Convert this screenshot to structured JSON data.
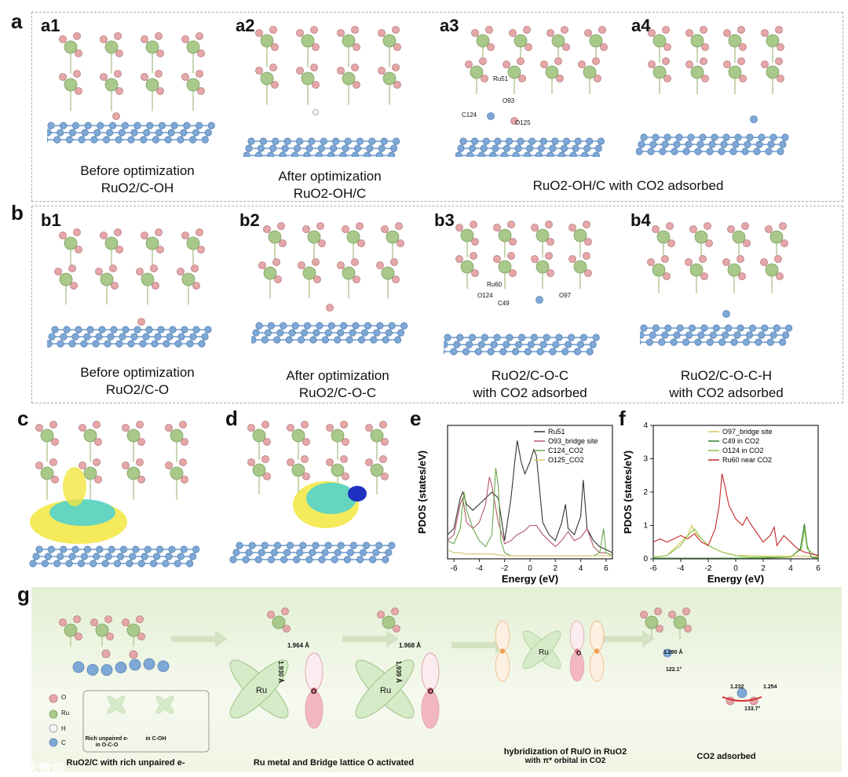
{
  "panels": {
    "a": "a",
    "b": "b",
    "c": "c",
    "d": "d",
    "e": "e",
    "f": "f",
    "g": "g",
    "a1": "a1",
    "a2": "a2",
    "a3": "a3",
    "a4": "a4",
    "b1": "b1",
    "b2": "b2",
    "b3": "b3",
    "b4": "b4"
  },
  "captions": {
    "a1_l1": "Before optimization",
    "a1_l2": "RuO2/C-OH",
    "a2_l1": "After optimization",
    "a2_l2": "RuO2-OH/C",
    "a34": "RuO2-OH/C with CO2 adsorbed",
    "b1_l1": "Before optimization",
    "b1_l2": "RuO2/C-O",
    "b2_l1": "After optimization",
    "b2_l2": "RuO2/C-O-C",
    "b3_l1": "RuO2/C-O-C",
    "b3_l2": "with CO2 adsorbed",
    "b4_l1": "RuO2/C-O-C-H",
    "b4_l2": "with CO2 adsorbed"
  },
  "atom_labels": {
    "a3": [
      "Ru51",
      "O93",
      "C124",
      "O125"
    ],
    "b3": [
      "Ru60",
      "O124",
      "C49",
      "O97"
    ]
  },
  "chart_data": [
    {
      "type": "line",
      "panel": "e",
      "xlabel": "Energy (eV)",
      "ylabel": "PDOS (states/eV)",
      "xlim": [
        -6.5,
        6.5
      ],
      "ylim": [
        0,
        2.2
      ],
      "xticks": [
        "-6",
        "-4",
        "-2",
        "0",
        "2",
        "4",
        "6"
      ],
      "series": [
        {
          "name": "Ru51",
          "color": "#333333",
          "x": [
            -6.5,
            -6,
            -5.5,
            -5.3,
            -5,
            -4.5,
            -4,
            -3.5,
            -3,
            -2.5,
            -2,
            -1.5,
            -1.2,
            -1,
            -0.7,
            -0.4,
            0,
            0.3,
            0.5,
            1,
            1.5,
            2,
            2.5,
            2.8,
            3,
            3.5,
            4,
            4.2,
            4.5,
            5,
            5.5,
            6,
            6.5
          ],
          "y": [
            0.4,
            0.5,
            1.0,
            1.1,
            0.9,
            0.8,
            0.9,
            1.0,
            1.1,
            1.0,
            0.3,
            1.0,
            1.6,
            1.95,
            1.6,
            1.4,
            1.6,
            1.8,
            1.7,
            0.6,
            0.4,
            0.3,
            0.6,
            0.9,
            0.5,
            0.4,
            0.7,
            1.3,
            0.5,
            0.3,
            0.2,
            0.15,
            0.1
          ]
        },
        {
          "name": "O93_bridge site",
          "color": "#b5566a",
          "x": [
            -6.5,
            -6,
            -5.5,
            -5.3,
            -5,
            -4.5,
            -4,
            -3.5,
            -3.2,
            -3,
            -2.5,
            -2,
            -1.5,
            -1,
            -0.5,
            0,
            0.5,
            1,
            1.5,
            2,
            2.5,
            3,
            3.5,
            4,
            4.5,
            5,
            5.5,
            6,
            6.5
          ],
          "y": [
            0.3,
            0.4,
            0.9,
            1.0,
            0.6,
            0.5,
            0.6,
            0.9,
            1.35,
            1.2,
            0.6,
            0.25,
            0.3,
            0.4,
            0.45,
            0.55,
            0.55,
            0.4,
            0.3,
            0.2,
            0.3,
            0.45,
            0.3,
            0.35,
            0.5,
            0.2,
            0.1,
            0.1,
            0.05
          ]
        },
        {
          "name": "C124_CO2",
          "color": "#6aa84f",
          "x": [
            -6.5,
            -6,
            -5.5,
            -5.2,
            -5,
            -4.5,
            -4,
            -3.5,
            -3,
            -2.7,
            -2.5,
            -2.3,
            -2,
            -1.5,
            -1,
            0,
            1,
            2,
            3,
            4,
            5,
            5.5,
            5.8,
            6,
            6.5
          ],
          "y": [
            0.3,
            0.25,
            0.5,
            1.1,
            0.8,
            0.5,
            0.3,
            0.2,
            0.4,
            1.5,
            1.2,
            0.3,
            0.1,
            0.05,
            0.05,
            0.05,
            0.05,
            0.05,
            0.05,
            0.05,
            0.05,
            0.1,
            0.5,
            0.1,
            0.05
          ]
        },
        {
          "name": "O125_CO2",
          "color": "#d4c76a",
          "x": [
            -6.5,
            -6,
            -5.5,
            -5,
            -4.5,
            -4,
            -3,
            -2,
            -1,
            0,
            1,
            2,
            3,
            4,
            5,
            6,
            6.5
          ],
          "y": [
            0.15,
            0.1,
            0.1,
            0.08,
            0.08,
            0.08,
            0.08,
            0.05,
            0.05,
            0.05,
            0.05,
            0.05,
            0.05,
            0.05,
            0.05,
            0.05,
            0.05
          ]
        }
      ]
    },
    {
      "type": "line",
      "panel": "f",
      "xlabel": "Energy (eV)",
      "ylabel": "PDOS (states/eV)",
      "xlim": [
        -6,
        6
      ],
      "ylim": [
        0,
        4
      ],
      "xticks": [
        "-6",
        "-4",
        "-2",
        "0",
        "2",
        "4",
        "6"
      ],
      "yticks": [
        "0",
        "1",
        "2",
        "3",
        "4"
      ],
      "series": [
        {
          "name": "O97_bridge site",
          "color": "#d8c85a",
          "x": [
            -6,
            -5,
            -4.5,
            -4,
            -3.5,
            -3.2,
            -3,
            -2.5,
            -2,
            -1.5,
            -1,
            -0.5,
            0,
            1,
            2,
            3,
            4,
            5,
            6
          ],
          "y": [
            0.05,
            0.1,
            0.3,
            0.5,
            0.7,
            1.0,
            0.8,
            0.6,
            0.4,
            0.3,
            0.2,
            0.15,
            0.1,
            0.1,
            0.08,
            0.08,
            0.08,
            0.08,
            0.05
          ]
        },
        {
          "name": "C49 in CO2",
          "color": "#2e7d32",
          "x": [
            -6,
            -4,
            -2,
            0,
            2,
            4,
            4.7,
            5,
            5.2,
            5.5,
            6
          ],
          "y": [
            0.02,
            0.02,
            0.02,
            0.02,
            0.02,
            0.05,
            0.3,
            1.05,
            0.4,
            0.05,
            0.02
          ]
        },
        {
          "name": "O124 in CO2",
          "color": "#8bc34a",
          "x": [
            -6,
            -5,
            -4,
            -3.5,
            -3,
            -2.5,
            -2,
            -1.5,
            -1,
            0,
            1,
            2,
            3,
            4,
            4.8,
            5,
            5.2,
            6
          ],
          "y": [
            0.05,
            0.1,
            0.4,
            0.7,
            0.9,
            0.6,
            0.4,
            0.3,
            0.2,
            0.1,
            0.05,
            0.05,
            0.05,
            0.05,
            0.3,
            0.9,
            0.3,
            0.05
          ]
        },
        {
          "name": "Ru60 near CO2",
          "color": "#c62828",
          "x": [
            -6,
            -5.5,
            -5,
            -4.5,
            -4,
            -3.5,
            -3,
            -2.5,
            -2,
            -1.5,
            -1.2,
            -1,
            -0.8,
            -0.5,
            0,
            0.5,
            0.8,
            1,
            1.5,
            2,
            2.5,
            2.8,
            3,
            3.5,
            4,
            4.5,
            5,
            5.5,
            6
          ],
          "y": [
            0.5,
            0.6,
            0.5,
            0.6,
            0.7,
            0.6,
            0.75,
            0.5,
            0.4,
            0.9,
            1.6,
            2.55,
            2.2,
            1.6,
            1.2,
            1.0,
            1.25,
            1.1,
            0.8,
            0.5,
            0.7,
            0.95,
            0.4,
            0.7,
            0.5,
            0.3,
            0.2,
            0.15,
            0.1
          ]
        }
      ]
    }
  ],
  "g": {
    "legend": [
      "O",
      "Ru",
      "H",
      "C"
    ],
    "legend_box_1": "Rich unpaired e- in O-C-O",
    "legend_box_2": "in C-OH",
    "step1": "RuO2/C with rich unpaired e-",
    "step2": "Ru metal and Bridge lattice O activated",
    "step3_l1": "hybridization of Ru/O in RuO2",
    "step3_l2": "with π* orbital in CO2",
    "step4": "CO2 adsorbed",
    "bond_1": "1.964 Å",
    "bond_2": "1.930 Å",
    "bond_3": "1.968 Å",
    "bond_4": "1.939 Å",
    "bond_5": "1.290 Å",
    "bond_6": "122.1°",
    "bond_7": "1.232",
    "bond_8": "1.254",
    "bond_9": "133.7°",
    "ru": "Ru",
    "o": "O"
  },
  "watermark": "大数据"
}
